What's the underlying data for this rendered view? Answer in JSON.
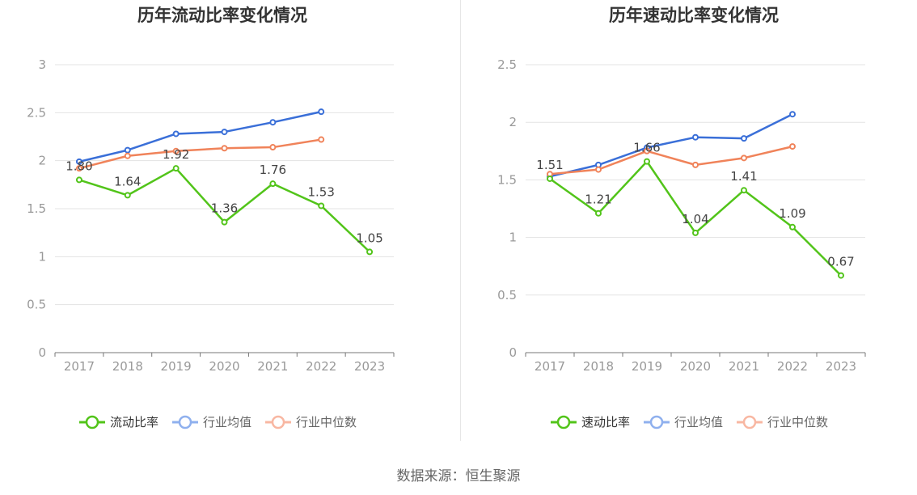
{
  "source_text": "数据来源：恒生聚源",
  "colors": {
    "company": "#52c41a",
    "mean": "#3a6fd8",
    "median": "#f0835a",
    "mean_legend": "#8fb0ee",
    "median_legend": "#f8b7a2",
    "axis": "#999999",
    "grid": "#e3e3e3",
    "title": "#333333"
  },
  "chart_data": [
    {
      "type": "line",
      "title": "历年流动比率变化情况",
      "categories": [
        "2017",
        "2018",
        "2019",
        "2020",
        "2021",
        "2022",
        "2023"
      ],
      "ylim": [
        0,
        3
      ],
      "yticks": [
        "0",
        "0.5",
        "1",
        "1.5",
        "2",
        "2.5",
        "3"
      ],
      "series": [
        {
          "name": "流动比率",
          "key": "company",
          "values": [
            1.8,
            1.64,
            1.92,
            1.36,
            1.76,
            1.53,
            1.05
          ],
          "labels": [
            "1.80",
            "1.64",
            "1.92",
            "1.36",
            "1.76",
            "1.53",
            "1.05"
          ]
        },
        {
          "name": "行业均值",
          "key": "mean",
          "values": [
            1.99,
            2.11,
            2.28,
            2.3,
            2.4,
            2.51,
            null
          ]
        },
        {
          "name": "行业中位数",
          "key": "median",
          "values": [
            1.92,
            2.05,
            2.1,
            2.13,
            2.14,
            2.22,
            null
          ]
        }
      ],
      "grid": true,
      "legend": "bottom"
    },
    {
      "type": "line",
      "title": "历年速动比率变化情况",
      "categories": [
        "2017",
        "2018",
        "2019",
        "2020",
        "2021",
        "2022",
        "2023"
      ],
      "ylim": [
        0,
        2.5
      ],
      "yticks": [
        "0",
        "0.5",
        "1",
        "1.5",
        "2",
        "2.5"
      ],
      "series": [
        {
          "name": "速动比率",
          "key": "company",
          "values": [
            1.51,
            1.21,
            1.66,
            1.04,
            1.41,
            1.09,
            0.67
          ],
          "labels": [
            "1.51",
            "1.21",
            "1.66",
            "1.04",
            "1.41",
            "1.09",
            "0.67"
          ]
        },
        {
          "name": "行业均值",
          "key": "mean",
          "values": [
            1.53,
            1.63,
            1.78,
            1.87,
            1.86,
            2.07,
            null
          ]
        },
        {
          "name": "行业中位数",
          "key": "median",
          "values": [
            1.55,
            1.59,
            1.75,
            1.63,
            1.69,
            1.79,
            null
          ]
        }
      ],
      "grid": true,
      "legend": "bottom"
    }
  ]
}
